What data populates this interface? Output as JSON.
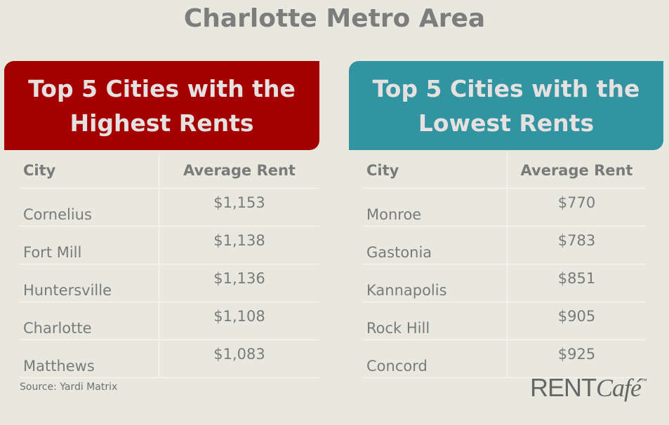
{
  "title": "Charlotte Metro Area",
  "highest": {
    "line1": "Top 5 Cities with the",
    "line2": "Highest Rents",
    "headers": [
      "City",
      "Average Rent"
    ],
    "rows": [
      [
        "Cornelius",
        "$1,153"
      ],
      [
        "Fort Mill",
        "$1,138"
      ],
      [
        "Huntersville",
        "$1,136"
      ],
      [
        "Charlotte",
        "$1,108"
      ],
      [
        "Matthews",
        "$1,083"
      ]
    ]
  },
  "lowest": {
    "line1": "Top 5 Cities with the",
    "line2": "Lowest Rents",
    "headers": [
      "City",
      "Average Rent"
    ],
    "rows": [
      [
        "Monroe",
        "$770"
      ],
      [
        "Gastonia",
        "$783"
      ],
      [
        "Kannapolis",
        "$851"
      ],
      [
        "Rock Hill",
        "$905"
      ],
      [
        "Concord",
        "$925"
      ]
    ]
  },
  "source": "Source: Yardi Matrix",
  "logo": {
    "rent": "RENT",
    "cafe": "Café",
    "tm": "™"
  },
  "colors": {
    "highest": "#a50000",
    "lowest": "#3294a0",
    "background": "#e9e8df"
  }
}
